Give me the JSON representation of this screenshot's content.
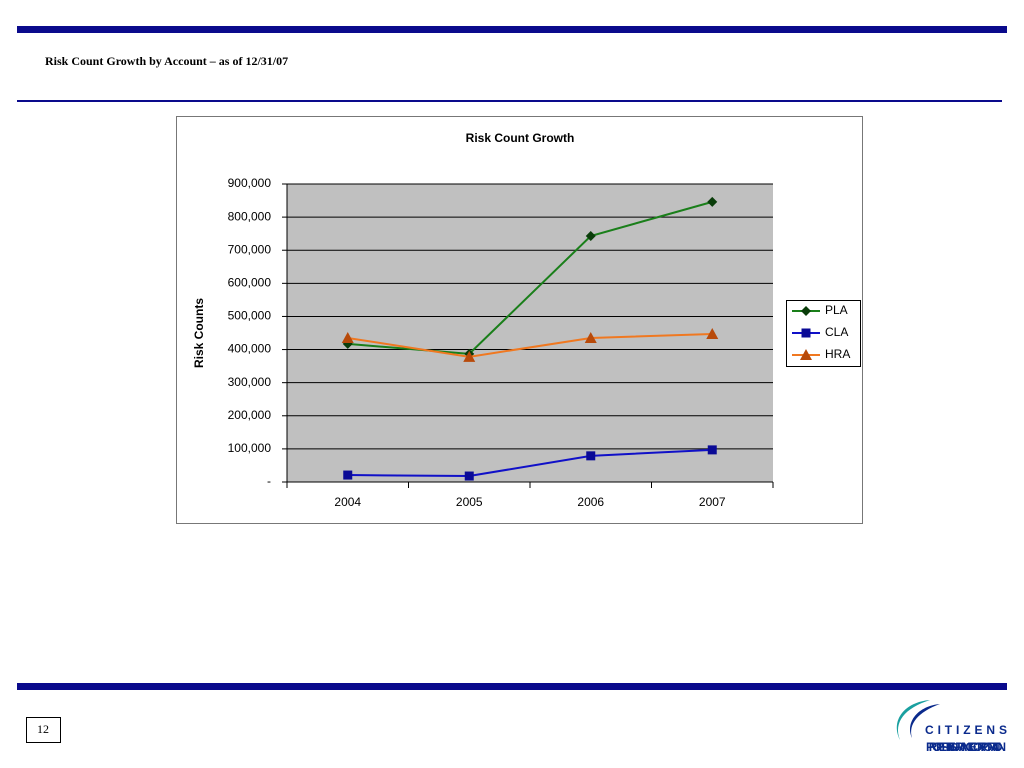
{
  "slide": {
    "title": "Risk Count Growth by Account – as of 12/31/07",
    "page_number": "12",
    "logo": {
      "name": "CITIZENS",
      "tagline": "PROPERTY INSURANCE CORPORATION"
    }
  },
  "chart_data": {
    "type": "line",
    "title": "Risk Count Growth",
    "y_label": "Risk Counts",
    "categories": [
      "2004",
      "2005",
      "2006",
      "2007"
    ],
    "series": [
      {
        "name": "PLA",
        "color": "#1a7f1a",
        "marker": "diamond",
        "marker_color": "#0a3d0a",
        "values": [
          417000,
          387000,
          743000,
          846000
        ]
      },
      {
        "name": "CLA",
        "color": "#1010c8",
        "marker": "square",
        "marker_color": "#0a0a96",
        "values": [
          21000,
          18000,
          79000,
          97000
        ]
      },
      {
        "name": "HRA",
        "color": "#f07820",
        "marker": "triangle",
        "marker_color": "#b84a0a",
        "values": [
          435000,
          378000,
          435000,
          447000
        ]
      }
    ],
    "ylim": [
      0,
      900000
    ],
    "yticks": [
      {
        "value": 0,
        "label": "-"
      },
      {
        "value": 100000,
        "label": "100,000"
      },
      {
        "value": 200000,
        "label": "200,000"
      },
      {
        "value": 300000,
        "label": "300,000"
      },
      {
        "value": 400000,
        "label": "400,000"
      },
      {
        "value": 500000,
        "label": "500,000"
      },
      {
        "value": 600000,
        "label": "600,000"
      },
      {
        "value": 700000,
        "label": "700,000"
      },
      {
        "value": 800000,
        "label": "800,000"
      },
      {
        "value": 900000,
        "label": "900,000"
      }
    ],
    "grid": true,
    "legend": "right"
  }
}
